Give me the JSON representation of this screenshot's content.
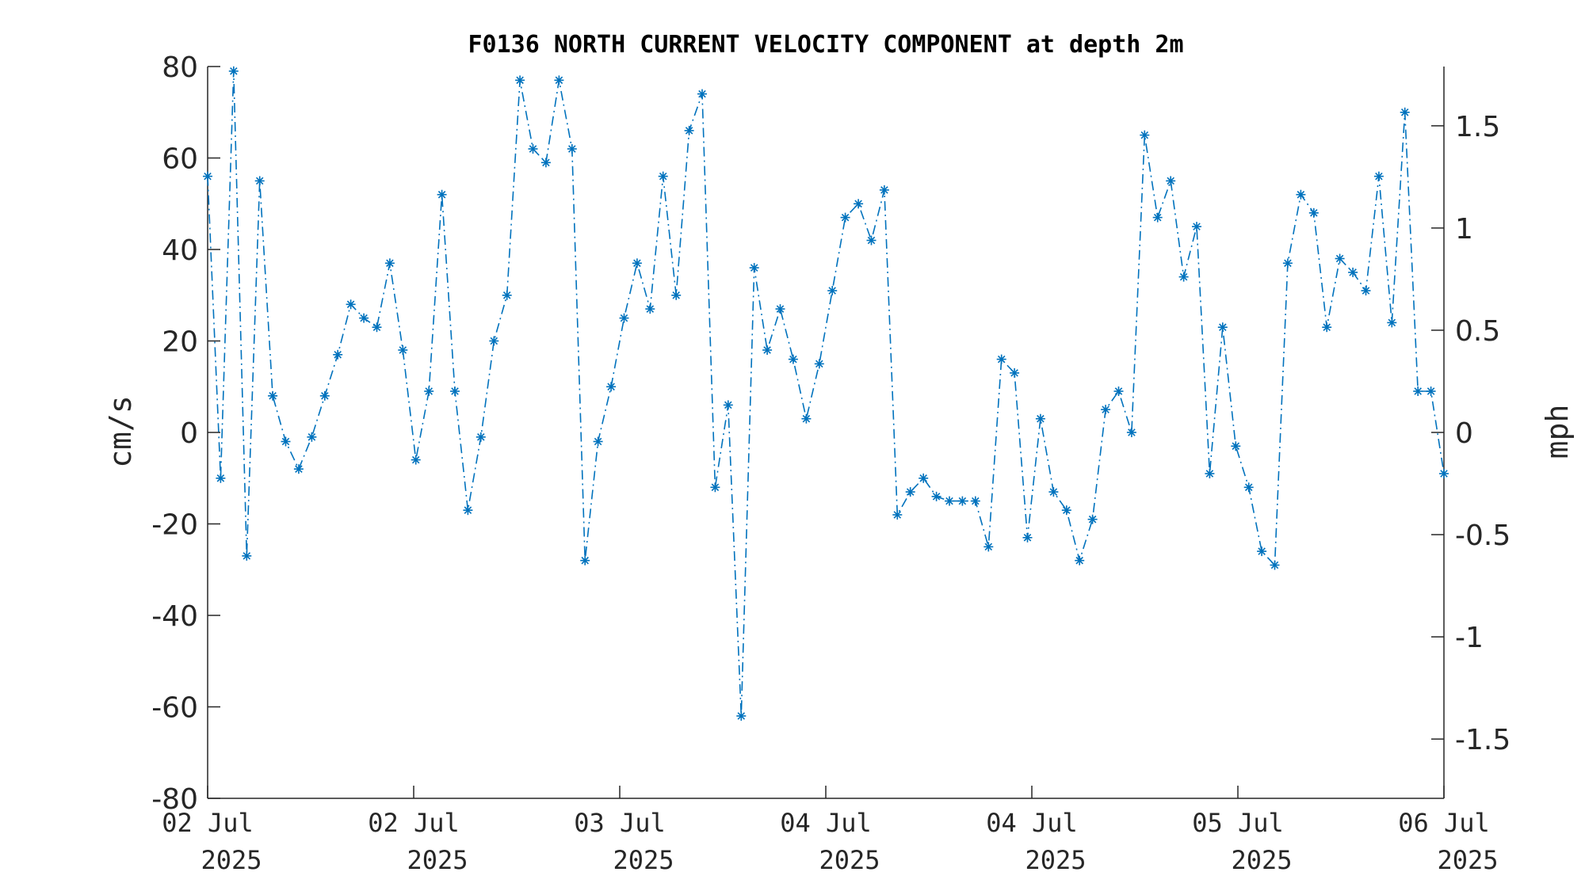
{
  "chart_data": {
    "type": "line",
    "title": "F0136 NORTH CURRENT VELOCITY COMPONENT at depth 2m",
    "ylabel": "cm/s",
    "y2label": "mph",
    "ylim": [
      -80,
      80
    ],
    "y2lim": [
      -1.79,
      1.79
    ],
    "yticks": [
      "80",
      "60",
      "40",
      "20",
      "0",
      "-20",
      "-40",
      "-60",
      "-80"
    ],
    "y2ticks": [
      "1.5",
      "1",
      "0.5",
      "0",
      "-0.5",
      "-1",
      "-1.5"
    ],
    "xticks": [
      {
        "day": "02 Jul",
        "year": "2025"
      },
      {
        "day": "02 Jul",
        "year": "2025"
      },
      {
        "day": "03 Jul",
        "year": "2025"
      },
      {
        "day": "04 Jul",
        "year": "2025"
      },
      {
        "day": "04 Jul",
        "year": "2025"
      },
      {
        "day": "05 Jul",
        "year": "2025"
      },
      {
        "day": "06 Jul",
        "year": "2025"
      }
    ],
    "marker": "asterisk",
    "line_style": "dash-dot",
    "color": "#0072bd",
    "grid": false,
    "series": [
      {
        "values": [
          56,
          -10,
          79,
          -27,
          55,
          8,
          -2,
          -8,
          -1,
          8,
          17,
          28,
          25,
          23,
          37,
          18,
          -6,
          9,
          52,
          9,
          -17,
          -1,
          20,
          30,
          77,
          62,
          59,
          77,
          62,
          -28,
          -2,
          10,
          25,
          37,
          27,
          56,
          30,
          66,
          74,
          -12,
          6,
          -62,
          36,
          18,
          27,
          16,
          3,
          15,
          31,
          47,
          50,
          42,
          53,
          -18,
          -13,
          -10,
          -14,
          -15,
          -15,
          -15,
          -25,
          16,
          13,
          -23,
          3,
          -13,
          -17,
          -28,
          -19,
          5,
          9,
          0,
          65,
          47,
          55,
          34,
          45,
          -9,
          23,
          -3,
          -12,
          -26,
          -29,
          37,
          52,
          48,
          23,
          38,
          35,
          31,
          56,
          24,
          70,
          9,
          9,
          -9
        ]
      }
    ]
  }
}
